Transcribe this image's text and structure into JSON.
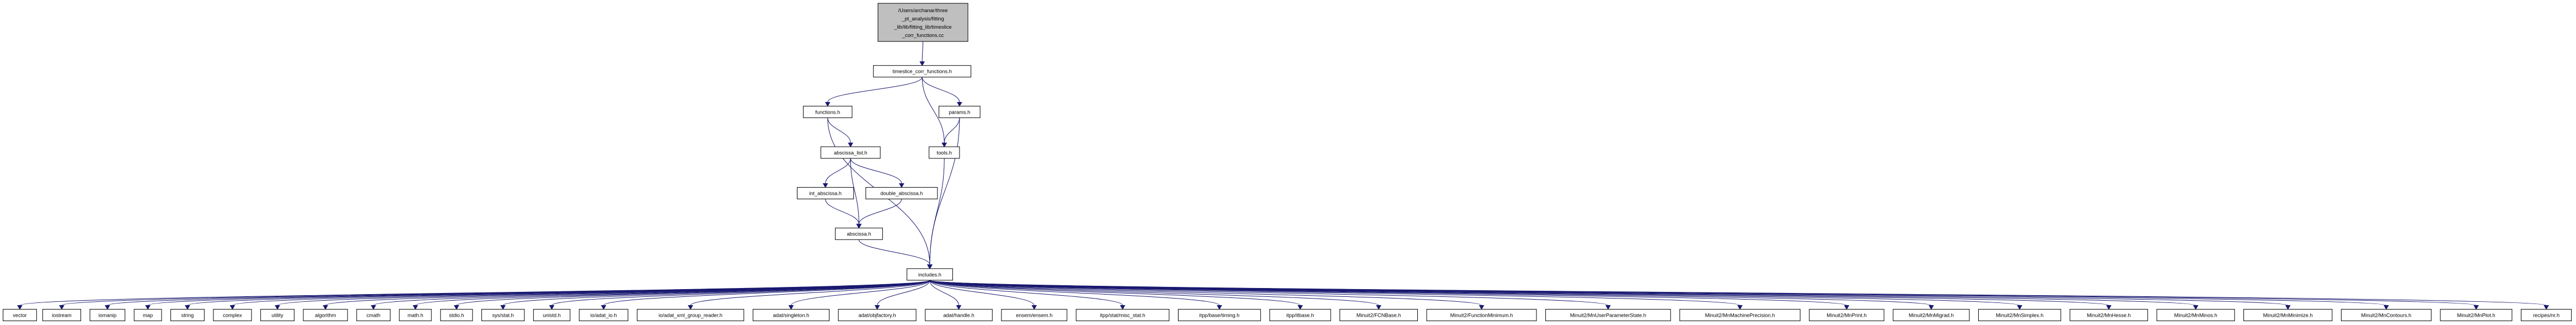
{
  "graph": {
    "root": {
      "lines": [
        "/Users/archanar/three",
        "_pt_analysis/fitting",
        "_lib/lib/fitting_lib/timeslice",
        "_corr_functions.cc"
      ]
    },
    "nodes": [
      {
        "id": "timeslice",
        "label": "timeslice_corr_functions.h"
      },
      {
        "id": "functions",
        "label": "functions.h"
      },
      {
        "id": "params",
        "label": "params.h"
      },
      {
        "id": "abscissa_list",
        "label": "abscissa_list.h"
      },
      {
        "id": "tools",
        "label": "tools.h"
      },
      {
        "id": "int_abscissa",
        "label": "int_abscissa.h"
      },
      {
        "id": "double_abscissa",
        "label": "double_abscissa.h"
      },
      {
        "id": "abscissa",
        "label": "abscissa.h"
      },
      {
        "id": "includes",
        "label": "includes.h"
      },
      {
        "id": "vector",
        "label": "vector"
      },
      {
        "id": "iostream",
        "label": "iostream"
      },
      {
        "id": "iomanip",
        "label": "iomanip"
      },
      {
        "id": "map",
        "label": "map"
      },
      {
        "id": "string",
        "label": "string"
      },
      {
        "id": "complex",
        "label": "complex"
      },
      {
        "id": "utility",
        "label": "utility"
      },
      {
        "id": "algorithm",
        "label": "algorithm"
      },
      {
        "id": "cmath",
        "label": "cmath"
      },
      {
        "id": "math",
        "label": "math.h"
      },
      {
        "id": "stdio",
        "label": "stdio.h"
      },
      {
        "id": "sysstat",
        "label": "sys/stat.h"
      },
      {
        "id": "unistd",
        "label": "unistd.h"
      },
      {
        "id": "adat_io",
        "label": "io/adat_io.h"
      },
      {
        "id": "adat_xml",
        "label": "io/adat_xml_group_reader.h"
      },
      {
        "id": "singleton",
        "label": "adat/singleton.h"
      },
      {
        "id": "objfactory",
        "label": "adat/objfactory.h"
      },
      {
        "id": "handle",
        "label": "adat/handle.h"
      },
      {
        "id": "ensem",
        "label": "ensem/ensem.h"
      },
      {
        "id": "misc_stat",
        "label": "itpp/stat/misc_stat.h"
      },
      {
        "id": "timing",
        "label": "itpp/base/timing.h"
      },
      {
        "id": "itbase",
        "label": "itpp/itbase.h"
      },
      {
        "id": "fcnbase",
        "label": "Minuit2/FCNBase.h"
      },
      {
        "id": "funcmin",
        "label": "Minuit2/FunctionMinimum.h"
      },
      {
        "id": "mnuserparam",
        "label": "Minuit2/MnUserParameterState.h"
      },
      {
        "id": "mnmachine",
        "label": "Minuit2/MnMachinePrecision.h"
      },
      {
        "id": "mnprint",
        "label": "Minuit2/MnPrint.h"
      },
      {
        "id": "mnmigrad",
        "label": "Minuit2/MnMigrad.h"
      },
      {
        "id": "mnsimplex",
        "label": "Minuit2/MnSimplex.h"
      },
      {
        "id": "mnhesse",
        "label": "Minuit2/MnHesse.h"
      },
      {
        "id": "mnminos",
        "label": "Minuit2/MnMinos.h"
      },
      {
        "id": "mnminimize",
        "label": "Minuit2/MnMinimize.h"
      },
      {
        "id": "mncontours",
        "label": "Minuit2/MnContours.h"
      },
      {
        "id": "mnplot",
        "label": "Minuit2/MnPlot.h"
      },
      {
        "id": "recipes",
        "label": "recipes/nr.h"
      }
    ],
    "edges": [
      [
        "root",
        "timeslice"
      ],
      [
        "timeslice",
        "functions"
      ],
      [
        "timeslice",
        "params"
      ],
      [
        "timeslice",
        "tools"
      ],
      [
        "functions",
        "abscissa_list"
      ],
      [
        "functions",
        "includes"
      ],
      [
        "params",
        "tools"
      ],
      [
        "params",
        "includes"
      ],
      [
        "abscissa_list",
        "int_abscissa"
      ],
      [
        "abscissa_list",
        "double_abscissa"
      ],
      [
        "abscissa_list",
        "abscissa"
      ],
      [
        "tools",
        "includes"
      ],
      [
        "int_abscissa",
        "abscissa"
      ],
      [
        "double_abscissa",
        "abscissa"
      ],
      [
        "abscissa",
        "includes"
      ],
      [
        "includes",
        "vector"
      ],
      [
        "includes",
        "iostream"
      ],
      [
        "includes",
        "iomanip"
      ],
      [
        "includes",
        "map"
      ],
      [
        "includes",
        "string"
      ],
      [
        "includes",
        "complex"
      ],
      [
        "includes",
        "utility"
      ],
      [
        "includes",
        "algorithm"
      ],
      [
        "includes",
        "cmath"
      ],
      [
        "includes",
        "math"
      ],
      [
        "includes",
        "stdio"
      ],
      [
        "includes",
        "sysstat"
      ],
      [
        "includes",
        "unistd"
      ],
      [
        "includes",
        "adat_io"
      ],
      [
        "includes",
        "adat_xml"
      ],
      [
        "includes",
        "singleton"
      ],
      [
        "includes",
        "objfactory"
      ],
      [
        "includes",
        "handle"
      ],
      [
        "includes",
        "ensem"
      ],
      [
        "includes",
        "misc_stat"
      ],
      [
        "includes",
        "timing"
      ],
      [
        "includes",
        "itbase"
      ],
      [
        "includes",
        "fcnbase"
      ],
      [
        "includes",
        "funcmin"
      ],
      [
        "includes",
        "mnuserparam"
      ],
      [
        "includes",
        "mnmachine"
      ],
      [
        "includes",
        "mnprint"
      ],
      [
        "includes",
        "mnmigrad"
      ],
      [
        "includes",
        "mnsimplex"
      ],
      [
        "includes",
        "mnhesse"
      ],
      [
        "includes",
        "mnminos"
      ],
      [
        "includes",
        "mnminimize"
      ],
      [
        "includes",
        "mncontours"
      ],
      [
        "includes",
        "mnplot"
      ],
      [
        "includes",
        "recipes"
      ]
    ],
    "colors": {
      "edge": "#191970",
      "root_fill": "#bfbfbf",
      "node_fill": "#ffffff",
      "node_stroke": "#000000"
    }
  }
}
